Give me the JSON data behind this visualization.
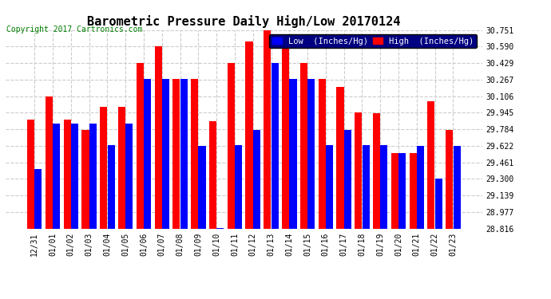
{
  "title": "Barometric Pressure Daily High/Low 20170124",
  "copyright": "Copyright 2017 Cartronics.com",
  "legend_low": "Low  (Inches/Hg)",
  "legend_high": "High  (Inches/Hg)",
  "dates": [
    "12/31",
    "01/01",
    "01/02",
    "01/03",
    "01/04",
    "01/05",
    "01/06",
    "01/07",
    "01/08",
    "01/09",
    "01/10",
    "01/11",
    "01/12",
    "01/13",
    "01/14",
    "01/15",
    "01/16",
    "01/17",
    "01/18",
    "01/19",
    "01/20",
    "01/21",
    "01/22",
    "01/23"
  ],
  "low_values": [
    29.4,
    29.84,
    29.84,
    29.84,
    29.63,
    29.84,
    30.27,
    30.27,
    30.27,
    29.62,
    28.82,
    29.63,
    29.78,
    30.43,
    30.27,
    30.27,
    29.63,
    29.78,
    29.63,
    29.63,
    29.55,
    29.62,
    29.3,
    29.62
  ],
  "high_values": [
    29.88,
    30.1,
    29.88,
    29.78,
    30.0,
    30.0,
    30.43,
    30.59,
    30.27,
    30.27,
    29.86,
    30.43,
    30.64,
    30.75,
    30.59,
    30.43,
    30.27,
    30.2,
    29.95,
    29.94,
    29.55,
    29.55,
    30.06,
    29.78
  ],
  "low_color": "#0000ff",
  "high_color": "#ff0000",
  "bg_color": "#ffffff",
  "grid_color": "#cccccc",
  "ylim_min": 28.816,
  "ylim_max": 30.751,
  "yticks": [
    28.816,
    28.977,
    29.139,
    29.3,
    29.461,
    29.622,
    29.784,
    29.945,
    30.106,
    30.267,
    30.429,
    30.59,
    30.751
  ],
  "title_fontsize": 11,
  "copyright_fontsize": 7,
  "legend_fontsize": 7.5,
  "tick_fontsize": 7
}
